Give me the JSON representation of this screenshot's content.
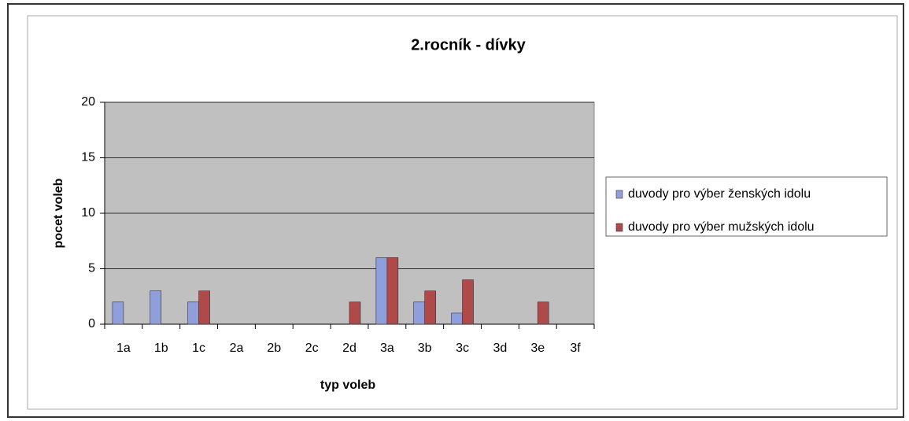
{
  "chart_data": {
    "type": "bar",
    "title": "2.rocník - dívky",
    "xlabel": "typ voleb",
    "ylabel": "pocet voleb",
    "categories": [
      "1a",
      "1b",
      "1c",
      "2a",
      "2b",
      "2c",
      "2d",
      "3a",
      "3b",
      "3c",
      "3d",
      "3e",
      "3f"
    ],
    "series": [
      {
        "name": "duvody pro výber ženských idolu",
        "color": "#8f9fdc",
        "values": [
          2,
          3,
          2,
          0,
          0,
          0,
          0,
          6,
          2,
          1,
          0,
          0,
          0
        ]
      },
      {
        "name": "duvody pro výber mužských idolu",
        "color": "#b04a4a",
        "values": [
          0,
          0,
          3,
          0,
          0,
          0,
          2,
          6,
          3,
          4,
          0,
          2,
          0
        ]
      }
    ],
    "ylim": [
      0,
      20
    ],
    "yticks": [
      0,
      5,
      10,
      15,
      20
    ],
    "grid": true,
    "legend": "right"
  }
}
